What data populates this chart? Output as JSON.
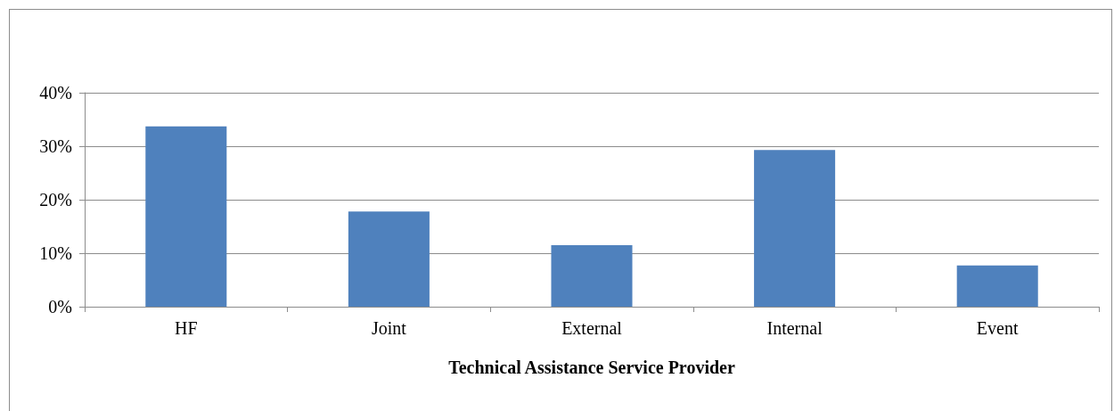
{
  "chart_data": {
    "type": "bar",
    "xlabel": "Technical Assistance Service Provider",
    "categories": [
      "HF",
      "Joint",
      "External",
      "Internal",
      "Event"
    ],
    "values": [
      33.7,
      17.8,
      11.5,
      29.3,
      7.7
    ],
    "color": "#4f81bd",
    "ylim": [
      0,
      40
    ],
    "yticks": [
      {
        "value": 0,
        "label": "0%"
      },
      {
        "value": 10,
        "label": "10%"
      },
      {
        "value": 20,
        "label": "20%"
      },
      {
        "value": 30,
        "label": "30%"
      },
      {
        "value": 40,
        "label": "40%"
      }
    ],
    "grid": "y"
  }
}
